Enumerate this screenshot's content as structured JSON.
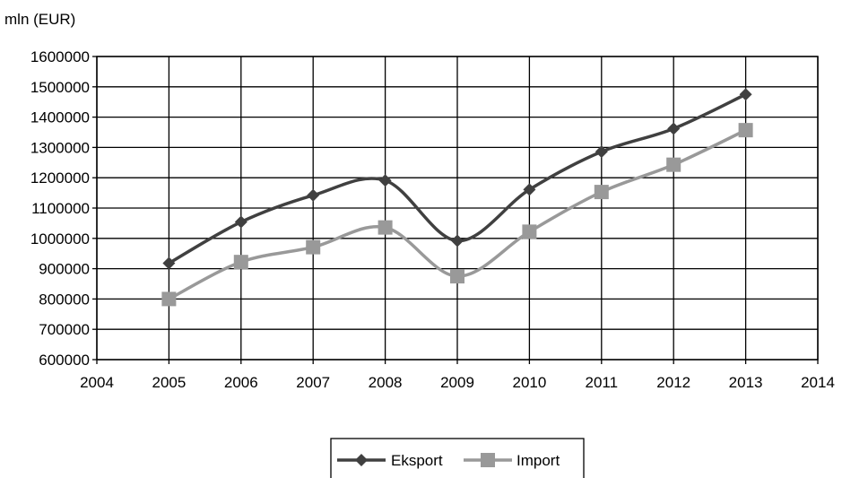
{
  "chart_data": {
    "type": "line",
    "unit_label": "mln (EUR)",
    "title": "",
    "xlabel": "",
    "ylabel": "",
    "xlim": [
      2004,
      2014
    ],
    "ylim": [
      600000,
      1600000
    ],
    "x_ticks": [
      "2004",
      "2005",
      "2006",
      "2007",
      "2008",
      "2009",
      "2010",
      "2011",
      "2012",
      "2013",
      "2014"
    ],
    "y_ticks": [
      "600000",
      "700000",
      "800000",
      "900000",
      "1000000",
      "1100000",
      "1200000",
      "1300000",
      "1400000",
      "1500000",
      "1600000"
    ],
    "grid": true,
    "legend_position": "bottom",
    "x": [
      2005,
      2006,
      2007,
      2008,
      2009,
      2010,
      2011,
      2012,
      2013
    ],
    "series": [
      {
        "name": "Eksport",
        "color": "#404040",
        "marker": "diamond",
        "values": [
          918000,
          1054000,
          1142000,
          1191000,
          992000,
          1161000,
          1286000,
          1362000,
          1475000
        ]
      },
      {
        "name": "Import",
        "color": "#999999",
        "marker": "square",
        "values": [
          800000,
          922000,
          971000,
          1036000,
          875000,
          1022000,
          1153000,
          1243000,
          1357000
        ]
      }
    ]
  }
}
